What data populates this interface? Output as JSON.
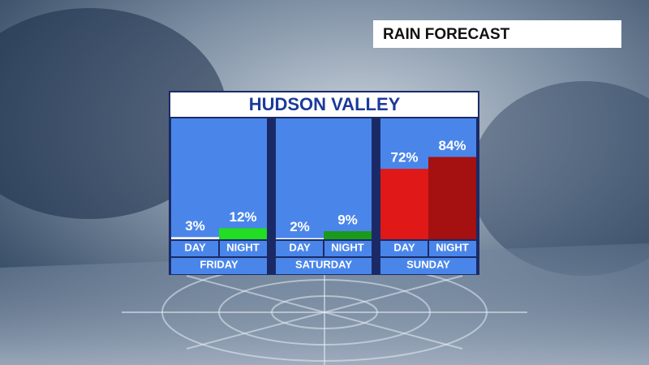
{
  "header": "RAIN FORECAST",
  "chart_data": {
    "type": "bar",
    "title": "HUDSON VALLEY",
    "categories": [
      "FRIDAY",
      "SATURDAY",
      "SUNDAY"
    ],
    "series": [
      {
        "name": "DAY",
        "colors": [
          "#ffffff",
          "#ffffff",
          "#e01818"
        ],
        "values": [
          3,
          2,
          72
        ],
        "value_labels": [
          "3%",
          "2%",
          "72%"
        ]
      },
      {
        "name": "NIGHT",
        "colors": [
          "#22dd22",
          "#1c9a1c",
          "#a51010"
        ],
        "values": [
          12,
          9,
          84
        ],
        "value_labels": [
          "12%",
          "9%",
          "84%"
        ]
      }
    ]
  }
}
